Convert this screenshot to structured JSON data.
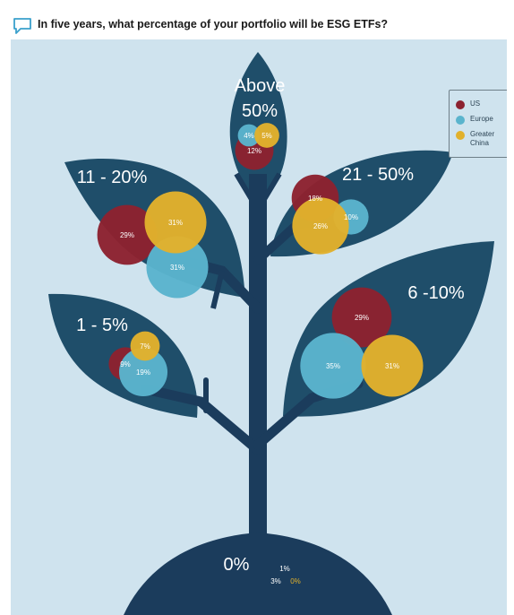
{
  "header": {
    "title": "In five years, what percentage of your portfolio will be ESG ETFs?",
    "icon": "speech-bubble-icon"
  },
  "colors": {
    "background": "#cfe3ee",
    "tree": "#1b3c5c",
    "leaf_dark": "#1f4e6a",
    "US": "#8c2230",
    "Europe": "#5ab4cd",
    "Greater China": "#e1b12c"
  },
  "legend": {
    "items": [
      {
        "label": "US",
        "color": "#8c2230"
      },
      {
        "label": "Europe",
        "color": "#5ab4cd"
      },
      {
        "label": "Greater China",
        "color": "#e1b12c"
      }
    ]
  },
  "chart_data": {
    "type": "bubble",
    "title": "In five years, what percentage of your portfolio will be ESG ETFs?",
    "series": [
      "US",
      "Europe",
      "Greater China"
    ],
    "categories": [
      {
        "label": "0%",
        "values": {
          "US": 3,
          "Europe": 1,
          "Greater China": 0
        }
      },
      {
        "label": "1 - 5%",
        "values": {
          "US": 9,
          "Europe": 19,
          "Greater China": 7
        }
      },
      {
        "label": "6 -10%",
        "values": {
          "US": 29,
          "Europe": 35,
          "Greater China": 31
        }
      },
      {
        "label": "11 - 20%",
        "values": {
          "US": 29,
          "Europe": 31,
          "Greater China": 31
        }
      },
      {
        "label": "21 - 50%",
        "values": {
          "US": 18,
          "Europe": 10,
          "Greater China": 26
        }
      },
      {
        "label": "Above 50%",
        "label_lines": [
          "Above",
          "50%"
        ],
        "values": {
          "US": 12,
          "Europe": 4,
          "Greater China": 5
        }
      }
    ]
  }
}
